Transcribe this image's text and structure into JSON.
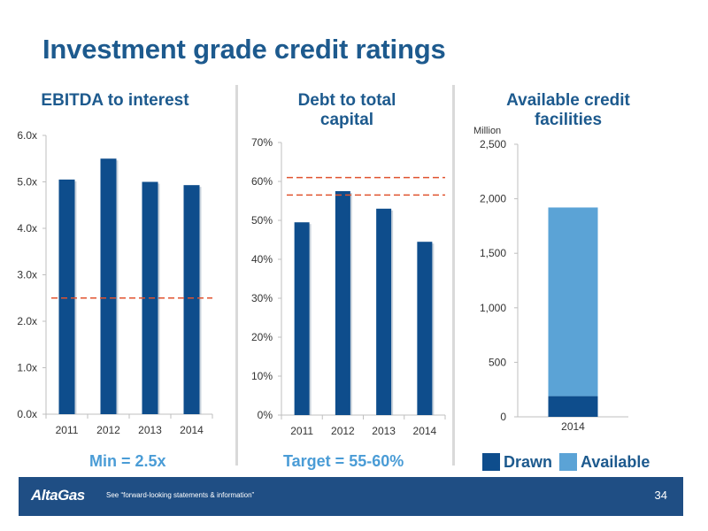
{
  "slide": {
    "title": "Investment grade credit ratings",
    "min_label": "Min = 2.5x",
    "target_label": "Target = 55-60%",
    "footer_logo": "AltaGas",
    "footer_text": "See “forward-looking statements & information”",
    "page_number": "34"
  },
  "legend": [
    {
      "label": "Drawn",
      "color": "#0e4d8c"
    },
    {
      "label": "Available",
      "color": "#5ba3d6"
    }
  ],
  "chart_data": [
    {
      "type": "bar",
      "title": "EBITDA to interest",
      "categories": [
        "2011",
        "2012",
        "2013",
        "2014"
      ],
      "values": [
        5.05,
        5.5,
        5.0,
        4.93
      ],
      "ylim": [
        0,
        6
      ],
      "yticks": [
        "0.0x",
        "1.0x",
        "2.0x",
        "3.0x",
        "4.0x",
        "5.0x",
        "6.0x"
      ],
      "reference_lines": [
        2.5
      ],
      "bar_color": "#0e4d8c",
      "reference_color": "#e0532f"
    },
    {
      "type": "bar",
      "title": "Debt to total capital",
      "categories": [
        "2011",
        "2012",
        "2013",
        "2014"
      ],
      "values": [
        49.5,
        57.5,
        53.0,
        44.5
      ],
      "ylim": [
        0,
        70
      ],
      "yticks": [
        "0%",
        "10%",
        "20%",
        "30%",
        "40%",
        "50%",
        "60%",
        "70%"
      ],
      "reference_lines": [
        56.5,
        61.0
      ],
      "bar_color": "#0e4d8c",
      "reference_color": "#e0532f"
    },
    {
      "type": "bar",
      "stacked": true,
      "title": "Available credit facilities",
      "ylabel": "Million",
      "categories": [
        "2014"
      ],
      "series": [
        {
          "name": "Drawn",
          "values": [
            190
          ],
          "color": "#0e4d8c"
        },
        {
          "name": "Available",
          "values": [
            1730
          ],
          "color": "#5ba3d6"
        }
      ],
      "ylim": [
        0,
        2500
      ],
      "yticks": [
        "0",
        "500",
        "1,000",
        "1,500",
        "2,000",
        "2,500"
      ]
    }
  ]
}
